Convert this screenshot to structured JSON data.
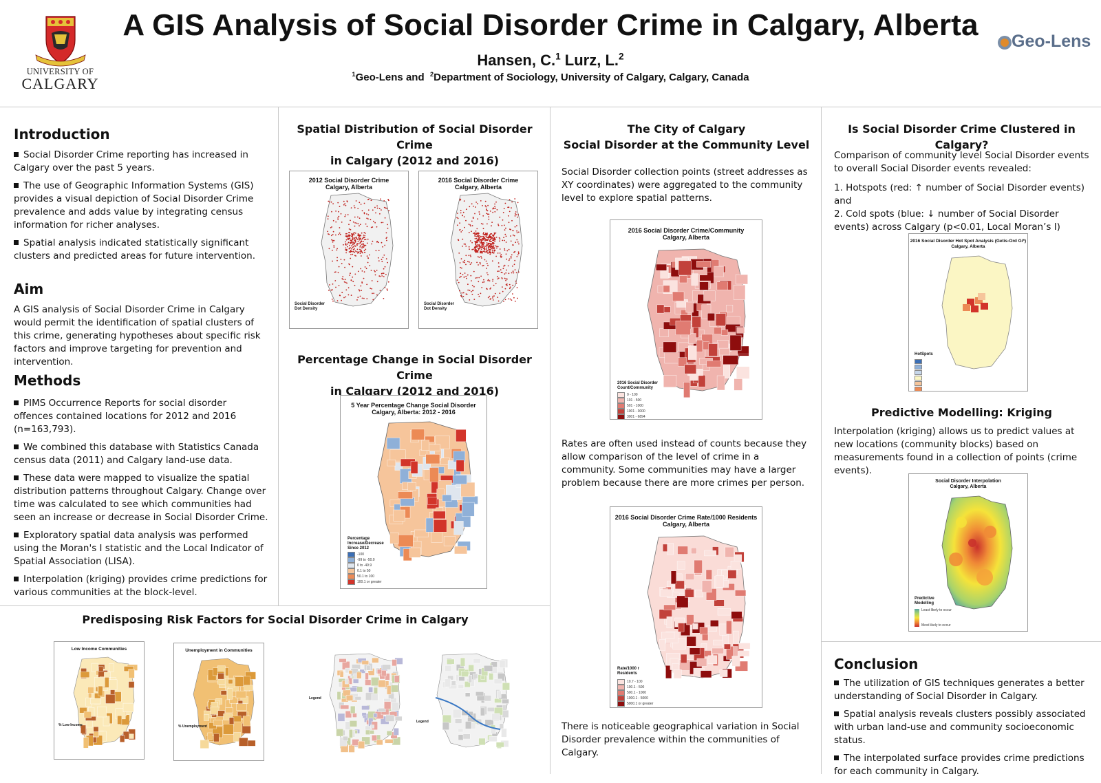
{
  "header": {
    "title": "A GIS Analysis of Social Disorder Crime in Calgary, Alberta",
    "author1": "Hansen, C.",
    "author1_sup": "1",
    "author2": "Lurz, L.",
    "author2_sup": "2",
    "affil_sup1": "1",
    "affil_part1": "Geo-Lens and ",
    "affil_sup2": "2",
    "affil_part2": "Department of Sociology, University of Calgary, Calgary, Canada",
    "uc_logo_line1": "UNIVERSITY OF",
    "uc_logo_line2": "CALGARY",
    "partner_logo": "Geo-Lens"
  },
  "col1": {
    "intro_heading": "Introduction",
    "intro_bullets": [
      "Social Disorder Crime reporting has increased in Calgary over the past 5 years.",
      "The use of Geographic Information Systems (GIS) provides a visual depiction of Social Disorder Crime prevalence and adds value by integrating census information for richer analyses.",
      "Spatial analysis indicated statistically significant clusters and predicted areas for future intervention."
    ],
    "aim_heading": "Aim",
    "aim_text": "A GIS analysis of Social Disorder Crime in Calgary would permit the identification of spatial clusters of this crime, generating hypotheses about specific risk factors and improve targeting for prevention and intervention.",
    "methods_heading": "Methods",
    "methods_bullets": [
      "PIMS Occurrence Reports for social disorder offences contained locations for 2012 and 2016 (n=163,793).",
      "We combined this database with Statistics Canada census data (2011) and Calgary land-use data.",
      "These data were mapped to visualize the spatial distribution patterns throughout Calgary.  Change over time was calculated to see which communities had seen an increase or decrease in Social Disorder Crime.",
      "Exploratory spatial data analysis was performed using the Moran's I statistic and the Local Indicator of Spatial Association (LISA).",
      "Interpolation (kriging) provides crime predictions for various communities at the block-level."
    ]
  },
  "col2": {
    "spatial_heading_l1": "Spatial Distribution of Social Disorder Crime",
    "spatial_heading_l2": "in Calgary (2012 and 2016)",
    "map2012_title_l1": "2012 Social Disorder Crime",
    "map2012_title_l2": "Calgary, Alberta",
    "map2016_title_l1": "2016 Social Disorder Crime",
    "map2016_title_l2": "Calgary, Alberta",
    "dot_legend_title": "Social Disorder Dot Density",
    "pct_heading_l1": "Percentage Change in Social Disorder Crime",
    "pct_heading_l2": "in Calgary (2012 and 2016)",
    "pct_map_title_l1": "5 Year Percentage Change Social Disorder",
    "pct_map_title_l2": "Calgary, Alberta: 2012 - 2016",
    "pct_legend_title": "Percentage Increase/Decrease Since 2012",
    "pct_legend_items": [
      "-100",
      "-99 to -50.0",
      "0 to -49.9",
      "0.1 to 50",
      "50.1 to 100",
      "100.1 or greater"
    ]
  },
  "col3": {
    "heading_l1": "The City of Calgary",
    "heading_l2": "Social Disorder at the Community Level",
    "para1": "Social Disorder collection points (street addresses as XY coordinates) were aggregated to the community level to explore spatial patterns.",
    "map1_title_l1": "2016 Social Disorder Crime/Community",
    "map1_title_l2": "Calgary, Alberta",
    "map1_legend_title": "2016 Social Disorder Count/Community",
    "map1_legend_items": [
      "0 - 100",
      "101 - 500",
      "501 - 1000",
      "1001 - 3000",
      "3001 - 6894"
    ],
    "para2": "Rates are often used instead of counts because they allow comparison of the level of crime in a community. Some communities may have a larger problem because there are more crimes per person.",
    "map2_title_l1": "2016 Social Disorder Crime Rate/1000 Residents",
    "map2_title_l2": "Calgary, Alberta",
    "map2_legend_title": "Rate/1000 r Residents",
    "map2_legend_items": [
      "10.7 - 100",
      "100.1 - 500",
      "500.1 - 1000",
      "1000.1 - 5000",
      "5000.1 or greater"
    ],
    "para3": "There is noticeable geographical variation in Social Disorder prevalence within the communities of Calgary."
  },
  "col4": {
    "cluster_heading": "Is Social Disorder Crime Clustered in Calgary?",
    "cluster_text_l1": "Comparison of community level Social Disorder events to overall Social Disorder events revealed:",
    "cluster_text_l2": "1. Hotspots (red: ↑ number of Social Disorder events) and",
    "cluster_text_l3": "2. Cold spots (blue: ↓ number of Social Disorder events) across Calgary (p<0.01, Local Moran’s I)",
    "hotspot_map_title_l1": "2016 Social Disorder Hot Spot Analysis (Getis-Ord Gi*)",
    "hotspot_map_title_l2": "Calgary, Alberta",
    "hotspot_legend_title": "HotSpots",
    "kriging_heading": "Predictive Modelling: Kriging",
    "kriging_text": "Interpolation (kriging) allows us to predict values at new locations (community blocks) based on measurements found in a collection of points (crime events).",
    "interp_map_title_l1": "Social Disorder Interpolation",
    "interp_map_title_l2": "Calgary, Alberta",
    "interp_legend_title": "Predictive Modelling",
    "interp_legend_low": "Least likely to occur",
    "interp_legend_high": "Most likely to occur",
    "conclusion_heading": "Conclusion",
    "conclusion_bullets": [
      "The utilization of GIS techniques generates a better understanding of Social Disorder in Calgary.",
      "Spatial analysis reveals clusters possibly associated with urban land-use and community socioeconomic status.",
      "The interpolated surface provides crime predictions for each community in Calgary."
    ]
  },
  "risk": {
    "heading": "Predisposing Risk Factors for Social Disorder Crime in Calgary",
    "lowincome_title": "Low Income Communities",
    "lowincome_legend": "% Low Income",
    "unemp_title": "Unemployment in Communities",
    "unemp_legend": "% Unemployment",
    "landuse_legend": "Legend",
    "transit_legend": "Legend"
  },
  "colors": {
    "dot_red": "#c0201c",
    "choropleth_light": "#fbe3df",
    "choropleth_dark": "#8e0d0d",
    "pct_orange": "#f4b78a",
    "hotspot_yellow": "#fbf6c4",
    "kriging_yellow": "#f5e33a"
  }
}
